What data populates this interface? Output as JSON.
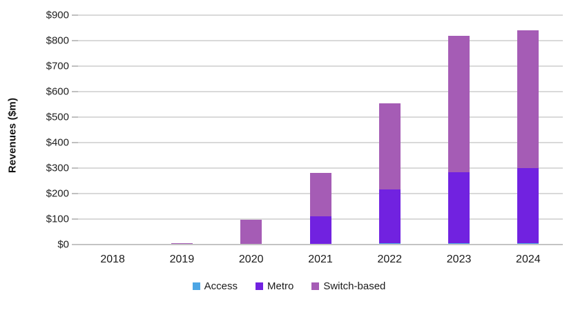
{
  "chart_data": {
    "type": "bar",
    "stacked": true,
    "title": "",
    "ylabel": "Revenues ($m)",
    "xlabel": "",
    "categories": [
      "2018",
      "2019",
      "2020",
      "2021",
      "2022",
      "2023",
      "2024"
    ],
    "series": [
      {
        "name": "Access",
        "color": "#4ca5e4",
        "values": [
          0,
          0,
          0,
          0,
          5,
          5,
          5
        ]
      },
      {
        "name": "Metro",
        "color": "#7122e0",
        "values": [
          0,
          0,
          0,
          110,
          210,
          280,
          295
        ]
      },
      {
        "name": "Switch-based",
        "color": "#a55cb5",
        "values": [
          0,
          5,
          97,
          170,
          340,
          535,
          540
        ]
      }
    ],
    "totals": [
      0,
      5,
      97,
      280,
      555,
      820,
      840
    ],
    "ylim": [
      0,
      900
    ],
    "ytick_step": 100,
    "ytick_labels": [
      "$0",
      "$100",
      "$200",
      "$300",
      "$400",
      "$500",
      "$600",
      "$700",
      "$800",
      "$900"
    ],
    "grid": true,
    "legend_position": "bottom"
  },
  "colors": {
    "gridline": "#d9d9d9",
    "axis_line": "#c3c3c3",
    "tick": "#bfbfbf",
    "text": "#1a1a1a",
    "background": "#ffffff"
  }
}
